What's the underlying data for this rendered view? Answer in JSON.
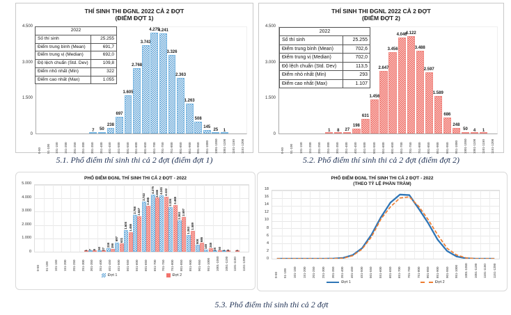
{
  "captions": {
    "fig1": "5.1. Phổ điểm thí sinh thi cả 2 đợt (điểm đợt 1)",
    "fig2": "5.2. Phổ điểm thí sinh thi cả 2 đợt (điểm đợt 2)",
    "fig3": "5.3. Phổ điểm thí sinh thi cả 2 đợt"
  },
  "colors": {
    "dot1_bar_blue": "#5B9BD5",
    "dot2_bar_red": "#F2736C",
    "line_blue": "#2E75B6",
    "line_orange": "#ED7D31"
  },
  "chart_data": [
    {
      "id": "hist-dot1",
      "type": "bar",
      "title": [
        "THÍ SINH THI ĐGNL 2022 CẢ 2 ĐỢT",
        "(ĐIỂM ĐỢT 1)"
      ],
      "categories": [
        "0-50",
        "51-100",
        "101-150",
        "151-200",
        "201-250",
        "251-300",
        "301-350",
        "351-400",
        "401-450",
        "451-500",
        "501-550",
        "551-600",
        "601-650",
        "651-700",
        "701-750",
        "751-800",
        "801-850",
        "851-900",
        "901-950",
        "951-1000",
        "1001-1050",
        "1051-1100",
        "1101-1150",
        "1151-1200"
      ],
      "values": [
        0,
        0,
        0,
        0,
        0,
        0,
        7,
        50,
        238,
        697,
        1605,
        2768,
        3743,
        4275,
        4241,
        3326,
        2363,
        1263,
        508,
        145,
        25,
        1,
        0,
        0
      ],
      "labels": [
        "",
        "",
        "",
        "",
        "",
        "",
        "7",
        "50",
        "238",
        "697",
        "1.605",
        "2.768",
        "3.743",
        "4.275",
        "4.241",
        "3.326",
        "2.363",
        "1.263",
        "508",
        "145",
        "25",
        "1",
        "",
        ""
      ],
      "ymax": 4500,
      "ytick_values": [
        0,
        1500,
        3000,
        4500
      ],
      "ytick_labels": [
        "0",
        "1.500",
        "3.000",
        "4.500"
      ],
      "legend_position": "none",
      "grid": false,
      "stats": {
        "header": "2022",
        "rows": [
          {
            "label": "Số thí sinh",
            "value": "25.255"
          },
          {
            "label": "Điểm trung bình (Mean)",
            "value": "691,7"
          },
          {
            "label": "Điểm trung vị (Median)",
            "value": "692,0"
          },
          {
            "label": "Độ lệch chuẩn (Std. Dev)",
            "value": "109,8"
          },
          {
            "label": "Điểm nhỏ nhất (Min)",
            "value": "322"
          },
          {
            "label": "Điểm cao nhất (Max)",
            "value": "1.055"
          }
        ]
      }
    },
    {
      "id": "hist-dot2",
      "type": "bar",
      "title": [
        "THÍ SINH THI ĐGNL 2022 CẢ 2 ĐỢT",
        "(ĐIỂM ĐỢT 2)"
      ],
      "categories": [
        "0-50",
        "51-100",
        "101-150",
        "151-200",
        "201-250",
        "251-300",
        "301-350",
        "351-400",
        "401-450",
        "451-500",
        "501-550",
        "551-600",
        "601-650",
        "651-700",
        "701-750",
        "751-800",
        "801-850",
        "851-900",
        "901-950",
        "951-1000",
        "1001-1050",
        "1051-1100",
        "1101-1150",
        "1151-1200"
      ],
      "values": [
        0,
        0,
        0,
        0,
        0,
        1,
        8,
        27,
        198,
        631,
        1456,
        2647,
        3456,
        4046,
        4122,
        3488,
        2597,
        1589,
        686,
        248,
        50,
        4,
        1,
        0
      ],
      "labels": [
        "",
        "",
        "",
        "",
        "",
        "1",
        "8",
        "27",
        "198",
        "631",
        "1.456",
        "2.647",
        "3.456",
        "4.046",
        "4.122",
        "3.488",
        "2.597",
        "1.589",
        "686",
        "248",
        "50",
        "4",
        "1",
        ""
      ],
      "ymax": 4500,
      "ytick_values": [
        0,
        1500,
        3000,
        4500
      ],
      "ytick_labels": [
        "0",
        "1.500",
        "3.000",
        "4.500"
      ],
      "legend_position": "none",
      "grid": false,
      "stats": {
        "header": "2022",
        "rows": [
          {
            "label": "Số thí sinh",
            "value": "25.255"
          },
          {
            "label": "Điểm trung bình (Mean)",
            "value": "702,6"
          },
          {
            "label": "Điểm trung vị (Median)",
            "value": "702,0"
          },
          {
            "label": "Độ lệch chuẩn (Std. Dev)",
            "value": "113,5"
          },
          {
            "label": "Điểm nhỏ nhất (Min)",
            "value": "293"
          },
          {
            "label": "Điểm cao nhất (Max)",
            "value": "1.107"
          }
        ]
      }
    },
    {
      "id": "hist-both",
      "type": "bar",
      "title": [
        "PHỔ ĐIỂM ĐGNL THÍ SINH THI CẢ 2 ĐỢT - 2022"
      ],
      "categories": [
        "0-50",
        "51-100",
        "101-150",
        "151-200",
        "201-250",
        "251-300",
        "301-350",
        "351-400",
        "401-450",
        "451-500",
        "501-550",
        "551-600",
        "601-650",
        "651-700",
        "701-750",
        "751-800",
        "801-850",
        "851-900",
        "901-950",
        "951-1000",
        "1001-1050",
        "1051-1100",
        "1101-1150",
        "1151-1200"
      ],
      "series": [
        {
          "name": "Đợt 1",
          "values": [
            0,
            0,
            0,
            0,
            0,
            0,
            7,
            50,
            238,
            697,
            1605,
            2768,
            3743,
            4275,
            4241,
            3326,
            2363,
            1263,
            508,
            145,
            25,
            1,
            0,
            0
          ],
          "labels": [
            "",
            "",
            "",
            "",
            "",
            "",
            "7",
            "50",
            "238",
            "697",
            "1.605",
            "2.768",
            "3.743",
            "4.275",
            "4.241",
            "3.326",
            "2.363",
            "1.263",
            "508",
            "145",
            "25",
            "1",
            "",
            ""
          ]
        },
        {
          "name": "Đợt 2",
          "values": [
            0,
            0,
            0,
            0,
            0,
            1,
            8,
            27,
            198,
            631,
            1456,
            2647,
            3456,
            4046,
            4122,
            3488,
            2597,
            1589,
            686,
            248,
            50,
            4,
            1,
            0
          ],
          "labels": [
            "",
            "",
            "",
            "",
            "",
            "1",
            "8",
            "27",
            "198",
            "631",
            "1.456",
            "2.647",
            "3.456",
            "4.046",
            "4.122",
            "3.488",
            "2.597",
            "1.589",
            "686",
            "248",
            "50",
            "4",
            "1",
            ""
          ]
        }
      ],
      "rotate_labels": true,
      "ymax": 5000,
      "ytick_values": [
        0,
        1000,
        2000,
        3000,
        4000,
        5000
      ],
      "ytick_labels": [
        "0",
        "1.000",
        "2.000",
        "3.000",
        "4.000",
        "5.000"
      ],
      "legend_position": "bottom",
      "grid": true
    },
    {
      "id": "line-percent",
      "type": "line",
      "title": [
        "PHỔ ĐIỂM ĐGNL THÍ SINH THI CẢ 2 ĐỢT - 2022",
        "(THEO TỶ LỆ PHẦN TRĂM)"
      ],
      "categories": [
        "0-50",
        "51-100",
        "101-150",
        "151-200",
        "201-250",
        "251-300",
        "301-350",
        "351-400",
        "401-450",
        "451-500",
        "501-550",
        "551-600",
        "601-650",
        "651-700",
        "701-750",
        "751-800",
        "801-850",
        "851-900",
        "901-950",
        "951-1000",
        "1001-1050",
        "1051-1100",
        "1101-1150",
        "1151-1200"
      ],
      "series": [
        {
          "name": "Đợt 1",
          "values": [
            0,
            0,
            0,
            0,
            0,
            0,
            0.03,
            0.2,
            0.94,
            2.76,
            6.36,
            10.96,
            14.82,
            16.93,
            16.79,
            13.17,
            9.36,
            5.0,
            2.01,
            0.57,
            0.1,
            0,
            0,
            0
          ]
        },
        {
          "name": "Đợt 2",
          "values": [
            0,
            0,
            0,
            0,
            0,
            0,
            0.03,
            0.11,
            0.78,
            2.5,
            5.77,
            10.48,
            13.68,
            16.02,
            16.32,
            13.81,
            10.28,
            6.29,
            2.72,
            0.98,
            0.2,
            0.02,
            0,
            0
          ]
        }
      ],
      "ymax": 18,
      "ytick_values": [
        0,
        2,
        4,
        6,
        8,
        10,
        12,
        14,
        16,
        18
      ],
      "ytick_labels": [
        "0",
        "2",
        "4",
        "6",
        "8",
        "10",
        "12",
        "14",
        "16",
        "18"
      ],
      "legend_position": "bottom",
      "grid": true
    }
  ]
}
